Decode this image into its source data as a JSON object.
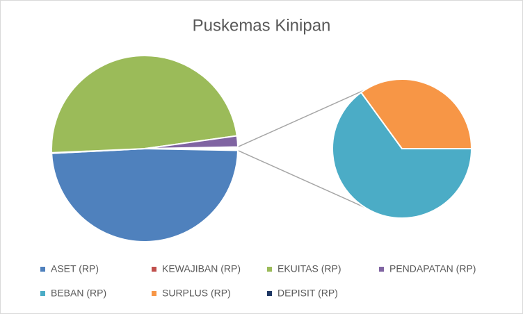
{
  "chart_data": {
    "type": "pie-of-pie",
    "title": "Puskemas Kinipan",
    "categories": [
      "ASET (RP)",
      "KEWAJIBAN (RP)",
      "EKUITAS (RP)",
      "PENDAPATAN (RP)",
      "BEBAN (RP)",
      "SURPLUS (RP)",
      "DEPISIT (RP)"
    ],
    "values": [
      48.9,
      0.1,
      48.5,
      1.9,
      0.39,
      0.21,
      0
    ],
    "colors": [
      "#4f81bd",
      "#c0504d",
      "#9bbb59",
      "#8064a2",
      "#4bacc6",
      "#f79646",
      "#1f3864"
    ],
    "second_plot_count": 3,
    "legend": "bottom"
  }
}
